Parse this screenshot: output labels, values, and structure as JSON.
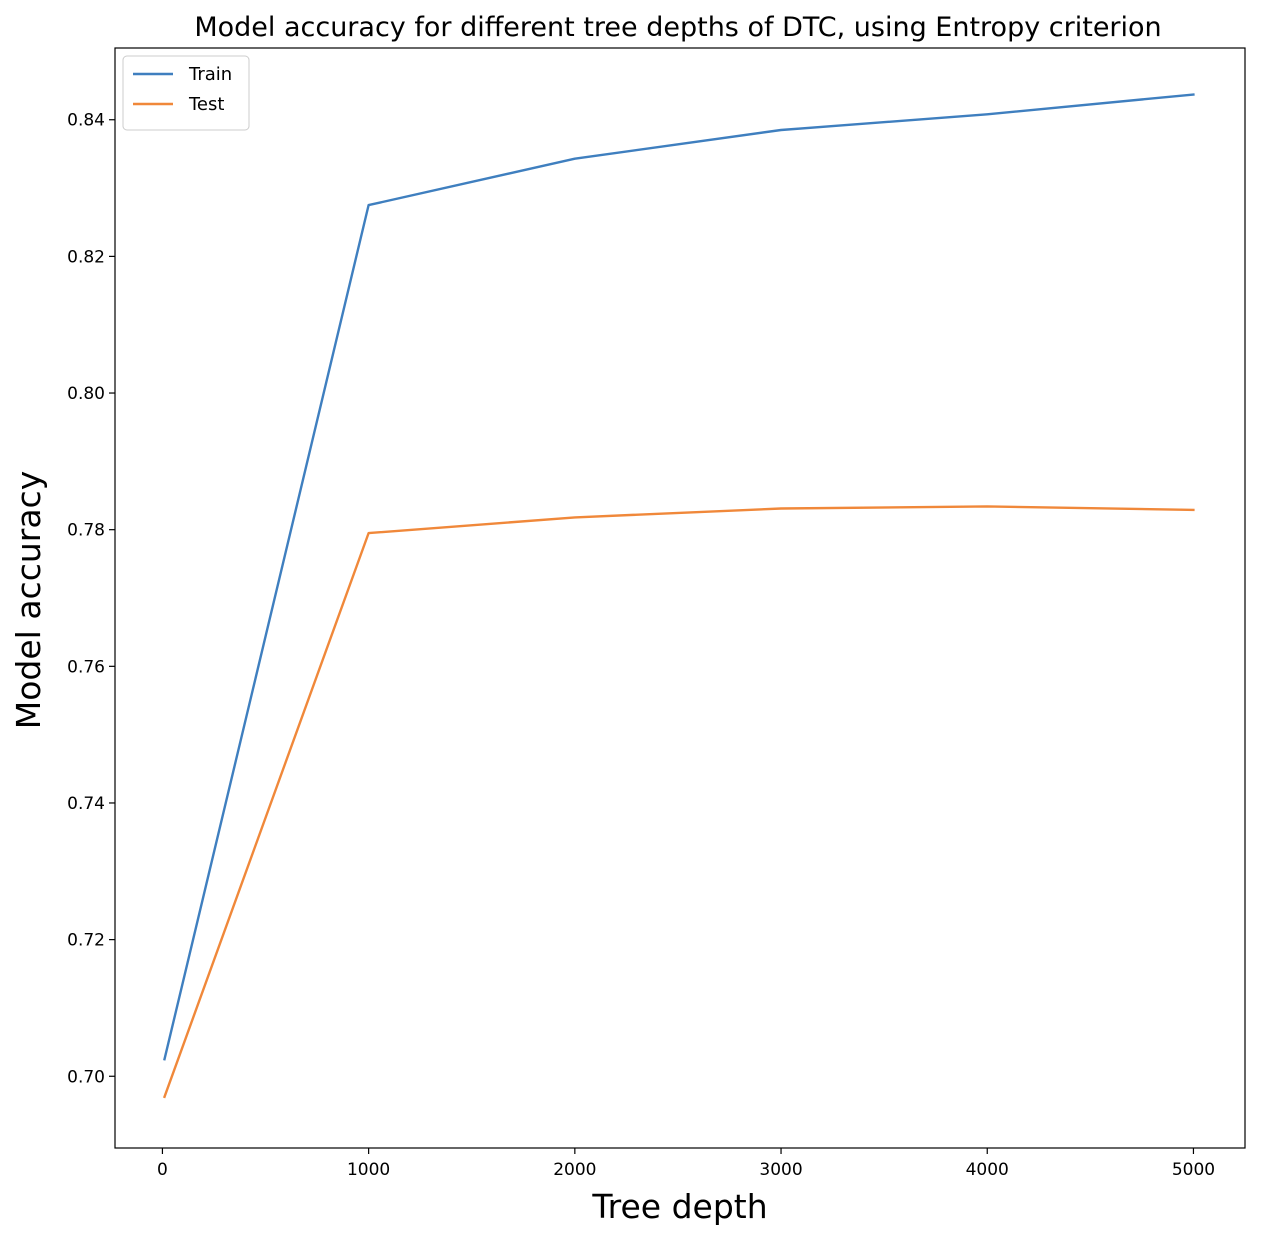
{
  "chart_data": {
    "type": "line",
    "title": "Model accuracy for different tree depths of DTC, using Entropy criterion",
    "xlabel": "Tree depth",
    "ylabel": "Model accuracy",
    "x": [
      10,
      1000,
      2000,
      3000,
      4000,
      5000
    ],
    "series": [
      {
        "name": "Train",
        "color": "#3f7fbf",
        "values": [
          0.7025,
          0.8275,
          0.8343,
          0.8385,
          0.8408,
          0.8437
        ]
      },
      {
        "name": "Test",
        "color": "#f0883a",
        "values": [
          0.697,
          0.7795,
          0.7818,
          0.7831,
          0.7834,
          0.7829
        ]
      }
    ],
    "xlim": [
      -230,
      5250
    ],
    "ylim": [
      0.6895,
      0.8505
    ],
    "xticks": [
      0,
      1000,
      2000,
      3000,
      4000,
      5000
    ],
    "yticks": [
      0.7,
      0.72,
      0.74,
      0.76,
      0.78,
      0.8,
      0.82,
      0.84
    ],
    "xtick_labels": [
      "0",
      "1000",
      "2000",
      "3000",
      "4000",
      "5000"
    ],
    "ytick_labels": [
      "0.70",
      "0.72",
      "0.74",
      "0.76",
      "0.78",
      "0.80",
      "0.82",
      "0.84"
    ],
    "grid": false,
    "legend_position": "top-left"
  }
}
